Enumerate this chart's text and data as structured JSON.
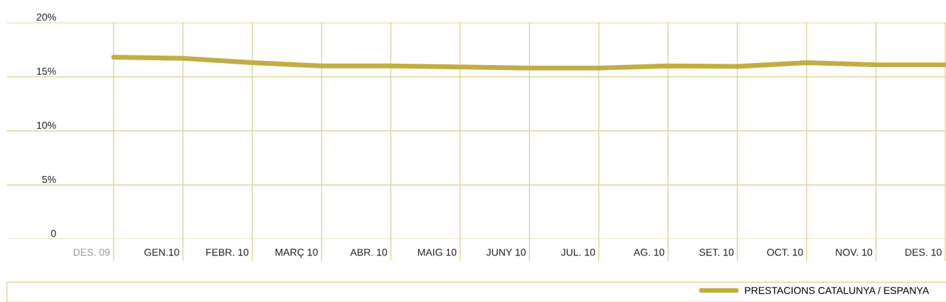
{
  "chart_data": {
    "type": "line",
    "categories": [
      "DES. 09",
      "GEN.10",
      "FEBR. 10",
      "MARÇ 10",
      "ABR. 10",
      "MAIG 10",
      "JUNY 10",
      "JUL. 10",
      "AG. 10",
      "SET. 10",
      "OCT. 10",
      "NOV. 10",
      "DES. 10"
    ],
    "series": [
      {
        "name": "PRESTACIONS CATALUNYA / ESPANYA",
        "color": "#c2ad45",
        "values": [
          16.8,
          16.7,
          16.3,
          16.0,
          16.0,
          15.9,
          15.8,
          15.8,
          16.0,
          15.95,
          16.3,
          16.1,
          16.1
        ]
      }
    ],
    "ylim": [
      0,
      20
    ],
    "yticks": [
      0,
      {
        "value": 5,
        "label": "5%"
      },
      {
        "value": 10,
        "label": "10%"
      },
      {
        "value": 15,
        "label": "15%"
      },
      {
        "value": 20,
        "label": "20%"
      }
    ],
    "grid": true,
    "legend": "bottom right",
    "marker": "none",
    "line_style": "solid"
  }
}
